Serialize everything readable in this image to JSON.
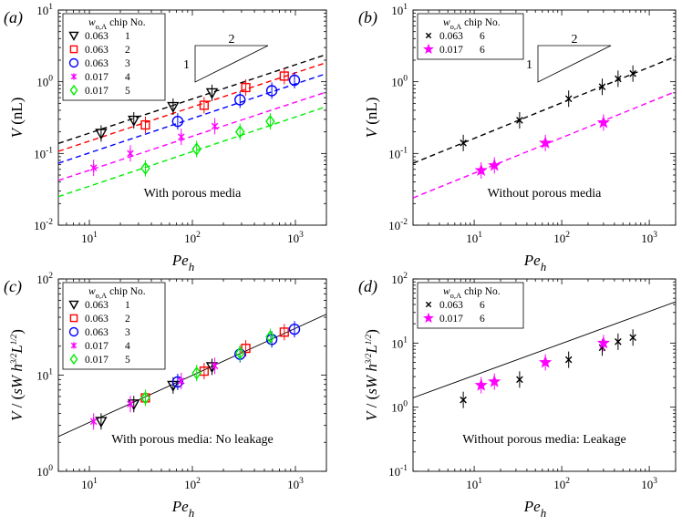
{
  "figure": {
    "panels": [
      {
        "id": "a",
        "label": "(a)",
        "ylabel": "V (nL)",
        "xlabel": "Pe_h",
        "annotation": "With porous media",
        "legend_header": [
          "w_o,A",
          "chip No."
        ],
        "slope_ratio": [
          "2",
          "1"
        ]
      },
      {
        "id": "b",
        "label": "(b)",
        "ylabel": "V (nL)",
        "xlabel": "Pe_h",
        "annotation": "Without porous media",
        "legend_header": [
          "w_o,A",
          "chip No."
        ],
        "slope_ratio": [
          "2",
          "1"
        ]
      },
      {
        "id": "c",
        "label": "(c)",
        "ylabel": "V / (sW h^3/2 L^1/2)",
        "xlabel": "Pe_h",
        "annotation": "With porous media: No leakage",
        "legend_header": [
          "w_o,A",
          "chip No."
        ]
      },
      {
        "id": "d",
        "label": "(d)",
        "ylabel": "V / (sW h^3/2 L^1/2)",
        "xlabel": "Pe_h",
        "annotation": "Without porous media: Leakage",
        "legend_header": [
          "w_o,A",
          "chip No."
        ]
      }
    ]
  },
  "chart_data": [
    {
      "type": "scatter",
      "panel": "a",
      "xscale": "log",
      "yscale": "log",
      "xlim": [
        5,
        2000
      ],
      "ylim": [
        0.01,
        10
      ],
      "xlabel": "Pe_h",
      "ylabel": "V (nL)",
      "xticks": [
        "10^1",
        "10^2",
        "10^3"
      ],
      "yticks": [
        "10^-2",
        "10^-1",
        "10^0",
        "10^1"
      ],
      "legend_position": "top-left",
      "series": [
        {
          "name": "0.063  1",
          "w": "0.063",
          "chip": "1",
          "color": "#000000",
          "marker": "triangle-down",
          "x": [
            13,
            27,
            65,
            155
          ],
          "y": [
            0.19,
            0.29,
            0.45,
            0.7
          ],
          "fit_line": [
            [
              5,
              0.138
            ],
            [
              2000,
              2.4
            ]
          ]
        },
        {
          "name": "0.063  2",
          "w": "0.063",
          "chip": "2",
          "color": "#ff0000",
          "marker": "square",
          "x": [
            35,
            130,
            330,
            780
          ],
          "y": [
            0.25,
            0.47,
            0.83,
            1.2
          ],
          "fit_line": [
            [
              5,
              0.107
            ],
            [
              2000,
              1.85
            ]
          ]
        },
        {
          "name": "0.063  3",
          "w": "0.063",
          "chip": "3",
          "color": "#0000ff",
          "marker": "circle",
          "x": [
            72,
            290,
            590,
            980
          ],
          "y": [
            0.28,
            0.56,
            0.75,
            1.05
          ],
          "fit_line": [
            [
              5,
              0.073
            ],
            [
              2000,
              1.3
            ]
          ]
        },
        {
          "name": "0.017  4",
          "w": "0.017",
          "chip": "4",
          "color": "#ff00ff",
          "marker": "asterisk",
          "x": [
            11,
            25,
            78,
            165
          ],
          "y": [
            0.063,
            0.1,
            0.17,
            0.24
          ],
          "fit_line": [
            [
              5,
              0.042
            ],
            [
              2000,
              0.72
            ]
          ]
        },
        {
          "name": "0.017  5",
          "w": "0.017",
          "chip": "5",
          "color": "#00ee00",
          "marker": "diamond",
          "x": [
            35,
            110,
            290,
            570
          ],
          "y": [
            0.062,
            0.115,
            0.2,
            0.28
          ],
          "fit_line": [
            [
              5,
              0.025
            ],
            [
              2000,
              0.45
            ]
          ]
        }
      ]
    },
    {
      "type": "scatter",
      "panel": "b",
      "xscale": "log",
      "yscale": "log",
      "xlim": [
        2,
        2000
      ],
      "ylim": [
        0.01,
        10
      ],
      "xlabel": "Pe_h",
      "ylabel": "V (nL)",
      "xticks": [
        "10^1",
        "10^2",
        "10^3"
      ],
      "yticks": [
        "10^-2",
        "10^-1",
        "10^0",
        "10^1"
      ],
      "legend_position": "top-left",
      "series": [
        {
          "name": "0.063  6",
          "w": "0.063",
          "chip": "6",
          "color": "#000000",
          "marker": "x",
          "x": [
            7.5,
            33,
            120,
            290,
            440,
            650
          ],
          "y": [
            0.14,
            0.29,
            0.58,
            0.85,
            1.1,
            1.3
          ],
          "fit_line": [
            [
              2,
              0.073
            ],
            [
              2000,
              2.25
            ]
          ]
        },
        {
          "name": "0.017  6",
          "w": "0.017",
          "chip": "6",
          "color": "#ff00ff",
          "marker": "star",
          "x": [
            12,
            17,
            65,
            300
          ],
          "y": [
            0.058,
            0.068,
            0.14,
            0.27
          ],
          "fit_line": [
            [
              2,
              0.024
            ],
            [
              2000,
              0.73
            ]
          ]
        }
      ]
    },
    {
      "type": "scatter",
      "panel": "c",
      "xscale": "log",
      "yscale": "log",
      "xlim": [
        5,
        2000
      ],
      "ylim": [
        1,
        100
      ],
      "xlabel": "Pe_h",
      "ylabel": "V / (sW h^3/2 L^1/2)",
      "xticks": [
        "10^1",
        "10^2",
        "10^3"
      ],
      "yticks": [
        "10^0",
        "10^1",
        "10^2"
      ],
      "legend_position": "top-left",
      "fit_line": [
        [
          5,
          2.3
        ],
        [
          2000,
          43
        ]
      ],
      "series": [
        {
          "name": "0.063  1",
          "color": "#000000",
          "marker": "triangle-down",
          "x": [
            13,
            27,
            65,
            155
          ],
          "y": [
            3.3,
            5.0,
            7.8,
            12.2
          ]
        },
        {
          "name": "0.063  2",
          "color": "#ff0000",
          "marker": "square",
          "x": [
            35,
            130,
            330,
            780
          ],
          "y": [
            5.8,
            11.0,
            19.0,
            28.0
          ]
        },
        {
          "name": "0.063  3",
          "color": "#0000ff",
          "marker": "circle",
          "x": [
            72,
            290,
            590,
            980
          ],
          "y": [
            8.5,
            16.5,
            23.5,
            30.0
          ]
        },
        {
          "name": "0.017  4",
          "color": "#ff00ff",
          "marker": "asterisk",
          "x": [
            11,
            25,
            78,
            165
          ],
          "y": [
            3.3,
            5.0,
            8.7,
            12.5
          ]
        },
        {
          "name": "0.017  5",
          "color": "#00ee00",
          "marker": "diamond",
          "x": [
            35,
            110,
            290,
            570
          ],
          "y": [
            5.8,
            10.5,
            17.0,
            25.0
          ]
        }
      ]
    },
    {
      "type": "scatter",
      "panel": "d",
      "xscale": "log",
      "yscale": "log",
      "xlim": [
        2,
        2000
      ],
      "ylim": [
        0.1,
        100
      ],
      "xlabel": "Pe_h",
      "ylabel": "V / (sW h^3/2 L^1/2)",
      "xticks": [
        "10^1",
        "10^2",
        "10^3"
      ],
      "yticks": [
        "10^-1",
        "10^0",
        "10^1",
        "10^2"
      ],
      "legend_position": "top-left",
      "fit_line": [
        [
          2,
          1.4
        ],
        [
          2000,
          44
        ]
      ],
      "series": [
        {
          "name": "0.063  6",
          "color": "#000000",
          "marker": "x",
          "x": [
            7.5,
            33,
            120,
            290,
            440,
            650
          ],
          "y": [
            1.3,
            2.7,
            5.5,
            8.5,
            10.5,
            12.2
          ]
        },
        {
          "name": "0.017  6",
          "color": "#ff00ff",
          "marker": "star",
          "x": [
            12,
            17,
            65,
            300
          ],
          "y": [
            2.2,
            2.5,
            5.0,
            10.0
          ]
        }
      ]
    }
  ]
}
